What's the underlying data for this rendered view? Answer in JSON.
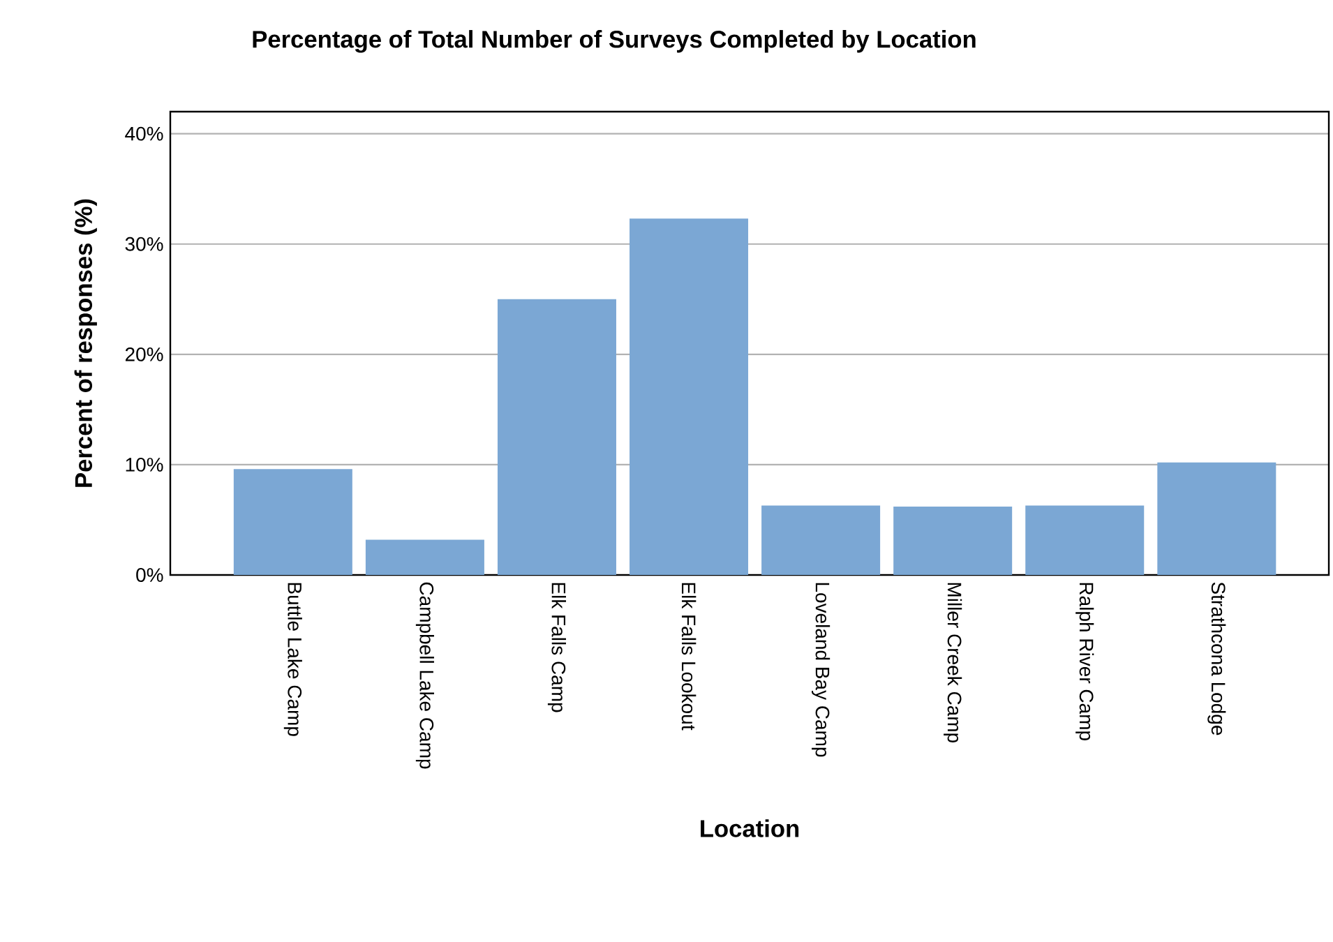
{
  "chart_data": {
    "type": "bar",
    "title": "Percentage of Total Number of Surveys Completed by Location",
    "xlabel": "Location",
    "ylabel": "Percent of responses (%)",
    "categories": [
      "Buttle Lake Camp",
      "Campbell Lake Camp",
      "Elk Falls Camp",
      "Elk Falls Lookout",
      "Loveland Bay Camp",
      "Miller Creek Camp",
      "Ralph River Camp",
      "Strathcona Lodge"
    ],
    "values": [
      9.6,
      3.2,
      25.0,
      32.3,
      6.3,
      6.2,
      6.3,
      10.2
    ],
    "color": "#7ba7d4",
    "ylim": [
      0,
      42
    ],
    "yticks": [
      {
        "value": 0,
        "label": "0%"
      },
      {
        "value": 10,
        "label": "10%"
      },
      {
        "value": 20,
        "label": "20%"
      },
      {
        "value": 30,
        "label": "30%"
      },
      {
        "value": 40,
        "label": "40%"
      }
    ],
    "grid": "y"
  }
}
